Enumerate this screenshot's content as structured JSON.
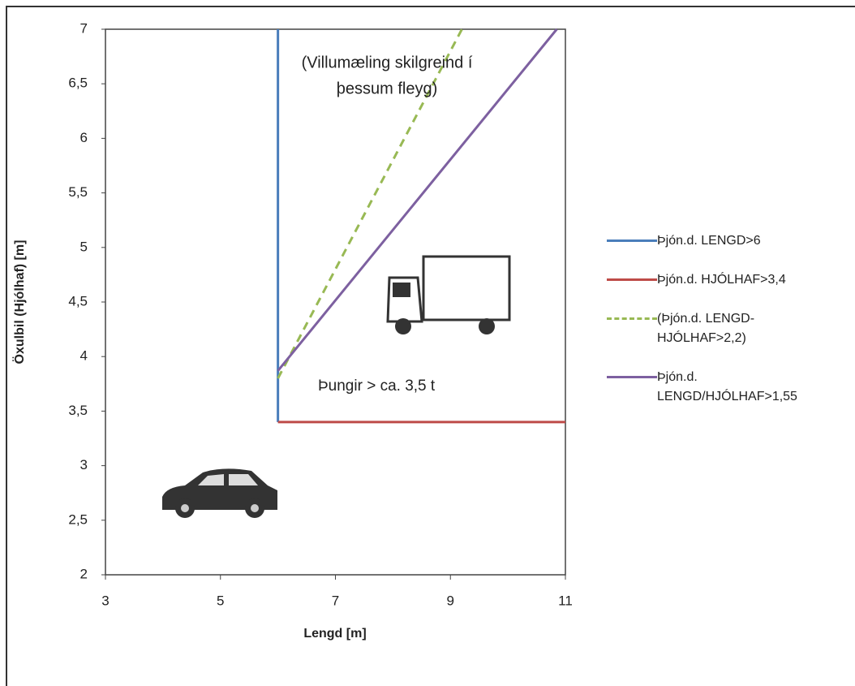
{
  "chart_data": {
    "type": "line",
    "xlabel": "Lengd  [m]",
    "ylabel": "Öxulbil (Hjólhaf)  [m]",
    "xlim": [
      3,
      11
    ],
    "xticks": [
      3,
      5,
      7,
      9,
      11
    ],
    "ylim": [
      2,
      7
    ],
    "yticks": [
      2,
      {
        "value": 2.5,
        "label": "2,5"
      },
      3,
      {
        "value": 3.5,
        "label": "3,5"
      },
      4,
      {
        "value": 4.5,
        "label": "4,5"
      },
      5,
      {
        "value": 5.5,
        "label": "5,5"
      },
      6,
      {
        "value": 6.5,
        "label": "6,5"
      },
      7
    ],
    "annotations": [
      "(Villumæling skilgreind í",
      "þessum fleyg)",
      "Þungir > ca. 3,5 t"
    ],
    "series": [
      {
        "name": "Þjón.d. LENGD>6",
        "color": "#4a7ebb",
        "dash": false,
        "x": [
          6,
          6
        ],
        "values": [
          3.4,
          7
        ]
      },
      {
        "name": "Þjón.d. HJÓLHAF>3,4",
        "color": "#be4b48",
        "dash": false,
        "x": [
          6,
          11
        ],
        "values": [
          3.4,
          3.4
        ]
      },
      {
        "name": "(Þjón.d. LENGD-HJÓLHAF>2,2)",
        "color": "#98b954",
        "dash": true,
        "x": [
          6,
          9.2
        ],
        "values": [
          3.8,
          7
        ]
      },
      {
        "name": "Þjón.d. LENGD/HJÓLHAF>1,55",
        "color": "#7d60a0",
        "dash": false,
        "x": [
          6,
          10.85
        ],
        "values": [
          3.87,
          7
        ]
      }
    ]
  }
}
